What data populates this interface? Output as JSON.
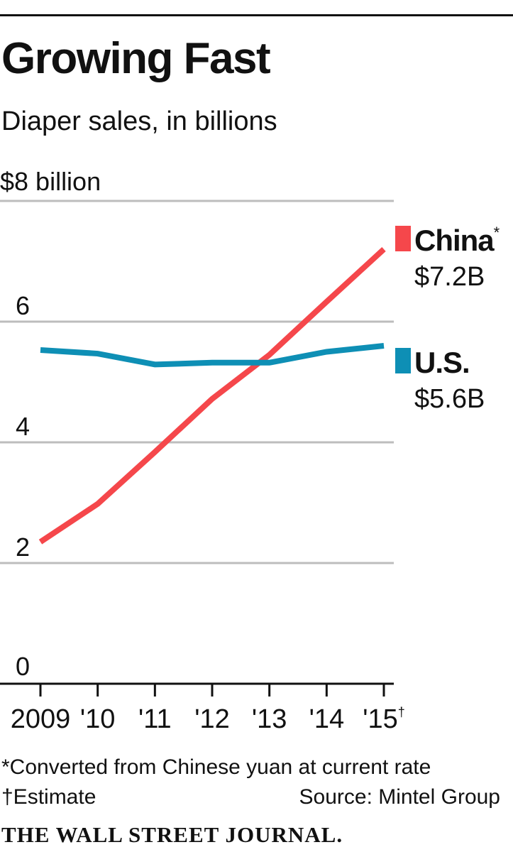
{
  "header": {
    "title": "Growing Fast",
    "subtitle": "Diaper sales, in billions"
  },
  "footer": {
    "note1": "*Converted from Chinese yuan at current rate",
    "note2": "†Estimate",
    "source": "Source: Mintel Group",
    "brand": "THE WALL STREET JOURNAL."
  },
  "chart_data": {
    "type": "line",
    "title": "Growing Fast",
    "subtitle": "Diaper sales, in billions",
    "ylabel": "",
    "xlabel": "",
    "ylim": [
      0,
      8
    ],
    "y_ticks": [
      0,
      2,
      4,
      6,
      8
    ],
    "y_tick_labels": [
      "0",
      "2",
      "4",
      "6",
      "$8 billion"
    ],
    "grid": true,
    "categories": [
      "2009",
      "'10",
      "'11",
      "'12",
      "'13",
      "'14",
      "'15†"
    ],
    "series": [
      {
        "name": "China",
        "marker": "*",
        "end_label": "$7.2B",
        "color": "#f5474b",
        "values": [
          2.35,
          2.98,
          3.84,
          4.72,
          5.45,
          6.33,
          7.2
        ]
      },
      {
        "name": "U.S.",
        "marker": "",
        "end_label": "$5.6B",
        "color": "#0e8fb5",
        "values": [
          5.53,
          5.47,
          5.29,
          5.32,
          5.32,
          5.5,
          5.6
        ]
      }
    ],
    "legend_placement": "right"
  }
}
